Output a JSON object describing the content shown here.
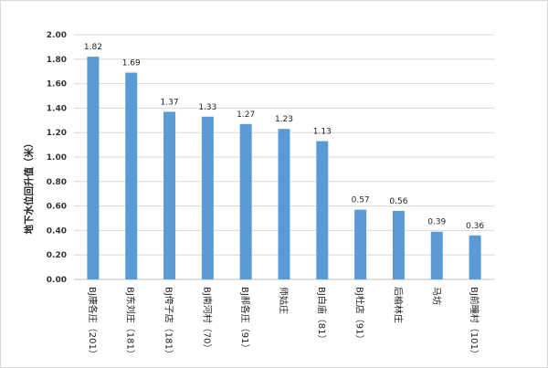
{
  "chart_data": {
    "type": "bar",
    "title": "",
    "xlabel": "",
    "ylabel": "地下水位回升值（米）",
    "ylim": [
      0,
      2.0
    ],
    "ytick_step": 0.2,
    "yticks": [
      "0.00",
      "0.20",
      "0.40",
      "0.60",
      "0.80",
      "1.00",
      "1.20",
      "1.40",
      "1.60",
      "1.80",
      "2.00"
    ],
    "grid": true,
    "legend": "none",
    "categories": [
      "BJ康各庄（201）",
      "BJ东刘庄（181）",
      "BJ侉子店（181）",
      "BJ南河村（70）",
      "BJ郝各庄（91）",
      "师姑庄",
      "BJ白庙（81）",
      "BJ杜店（91）",
      "后榆林庄",
      "马坊",
      "BJ前疃村（101）"
    ],
    "values": [
      1.82,
      1.69,
      1.37,
      1.33,
      1.27,
      1.23,
      1.13,
      0.57,
      0.56,
      0.39,
      0.36
    ],
    "data_labels": [
      "1.82",
      "1.69",
      "1.37",
      "1.33",
      "1.27",
      "1.23",
      "1.13",
      "0.57",
      "0.56",
      "0.39",
      "0.36"
    ],
    "colors": {
      "bar": "#5b9bd5",
      "grid": "#d9d9d9",
      "axis": "#bfbfbf"
    }
  }
}
